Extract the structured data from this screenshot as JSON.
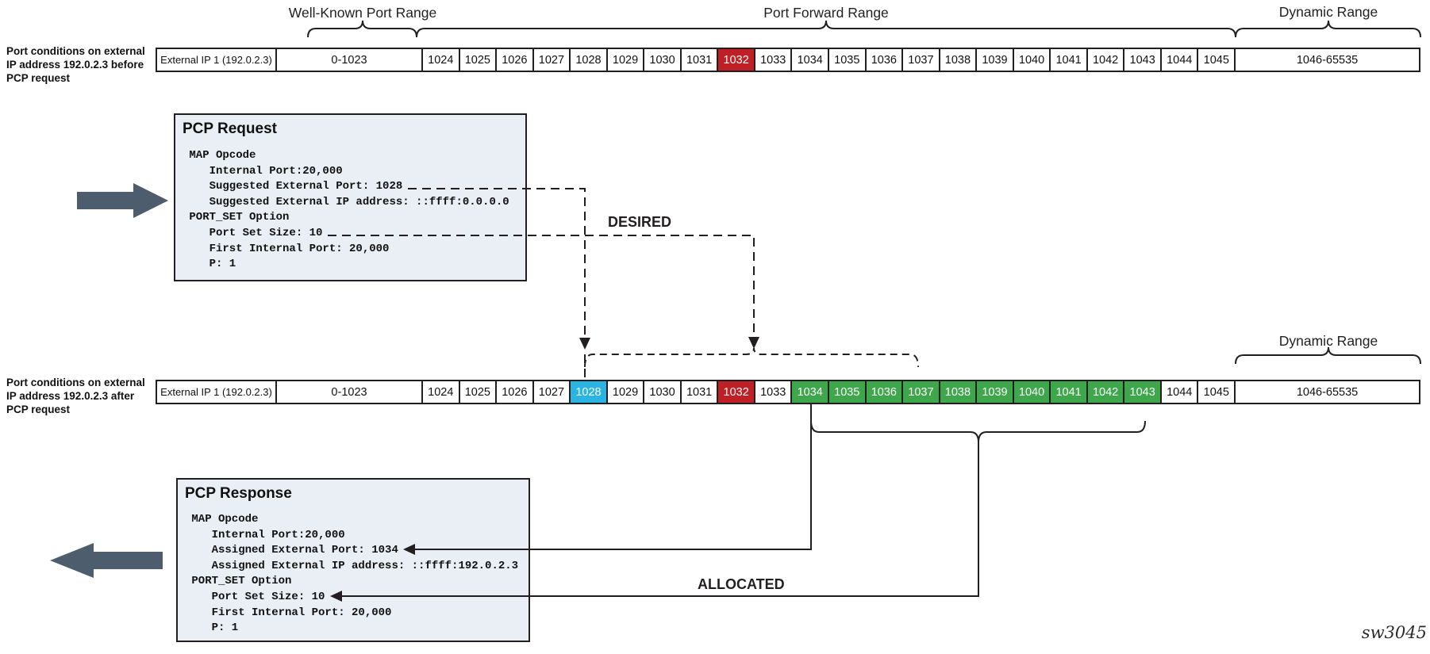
{
  "top_labels": {
    "well_known": "Well-Known Port Range",
    "port_forward": "Port Forward Range",
    "dynamic": "Dynamic Range"
  },
  "row2_dynamic_label": "Dynamic Range",
  "port_rows": {
    "before": {
      "caption_lines": [
        "Port conditions on external",
        "IP address 192.0.2.3 before",
        "PCP request"
      ],
      "ip_label": "External IP 1 (192.0.2.3)",
      "low_range": "0-1023",
      "high_range": "1046-65535",
      "ports": [
        {
          "v": "1024",
          "c": ""
        },
        {
          "v": "1025",
          "c": ""
        },
        {
          "v": "1026",
          "c": ""
        },
        {
          "v": "1027",
          "c": ""
        },
        {
          "v": "1028",
          "c": ""
        },
        {
          "v": "1029",
          "c": ""
        },
        {
          "v": "1030",
          "c": ""
        },
        {
          "v": "1031",
          "c": ""
        },
        {
          "v": "1032",
          "c": "red"
        },
        {
          "v": "1033",
          "c": ""
        },
        {
          "v": "1034",
          "c": ""
        },
        {
          "v": "1035",
          "c": ""
        },
        {
          "v": "1036",
          "c": ""
        },
        {
          "v": "1037",
          "c": ""
        },
        {
          "v": "1038",
          "c": ""
        },
        {
          "v": "1039",
          "c": ""
        },
        {
          "v": "1040",
          "c": ""
        },
        {
          "v": "1041",
          "c": ""
        },
        {
          "v": "1042",
          "c": ""
        },
        {
          "v": "1043",
          "c": ""
        },
        {
          "v": "1044",
          "c": ""
        },
        {
          "v": "1045",
          "c": ""
        }
      ]
    },
    "after": {
      "caption_lines": [
        "Port conditions on external",
        "IP address 192.0.2.3 after",
        "PCP request"
      ],
      "ip_label": "External IP 1 (192.0.2.3)",
      "low_range": "0-1023",
      "high_range": "1046-65535",
      "ports": [
        {
          "v": "1024",
          "c": ""
        },
        {
          "v": "1025",
          "c": ""
        },
        {
          "v": "1026",
          "c": ""
        },
        {
          "v": "1027",
          "c": ""
        },
        {
          "v": "1028",
          "c": "cyan"
        },
        {
          "v": "1029",
          "c": ""
        },
        {
          "v": "1030",
          "c": ""
        },
        {
          "v": "1031",
          "c": ""
        },
        {
          "v": "1032",
          "c": "red"
        },
        {
          "v": "1033",
          "c": ""
        },
        {
          "v": "1034",
          "c": "green"
        },
        {
          "v": "1035",
          "c": "green"
        },
        {
          "v": "1036",
          "c": "green"
        },
        {
          "v": "1037",
          "c": "green"
        },
        {
          "v": "1038",
          "c": "green"
        },
        {
          "v": "1039",
          "c": "green"
        },
        {
          "v": "1040",
          "c": "green"
        },
        {
          "v": "1041",
          "c": "green"
        },
        {
          "v": "1042",
          "c": "green"
        },
        {
          "v": "1043",
          "c": "green"
        },
        {
          "v": "1044",
          "c": ""
        },
        {
          "v": "1045",
          "c": ""
        }
      ]
    }
  },
  "boxes": {
    "request": {
      "title": "PCP Request",
      "lines": [
        " MAP Opcode",
        "    Internal Port:20,000",
        "    Suggested External Port: 1028",
        "    Suggested External IP address: ::ffff:0.0.0.0",
        " PORT_SET Option",
        "    Port Set Size: 10",
        "    First Internal Port: 20,000",
        "    P: 1"
      ]
    },
    "response": {
      "title": "PCP Response",
      "lines": [
        " MAP Opcode",
        "    Internal Port:20,000",
        "    Assigned External Port: 1034",
        "    Assigned External IP address: ::ffff:192.0.2.3",
        " PORT_SET Option",
        "    Port Set Size: 10",
        "    First Internal Port: 20,000",
        "    P: 1"
      ]
    }
  },
  "annotations": {
    "desired": "DESIRED",
    "allocated": "ALLOCATED",
    "watermark": "sw3045"
  },
  "colors": {
    "red": "#be2026",
    "cyan": "#2ab4e3",
    "green": "#3ea64b",
    "box_fill": "#e9eff5",
    "line": "#231f20",
    "arrow": "#4d5d6e"
  }
}
